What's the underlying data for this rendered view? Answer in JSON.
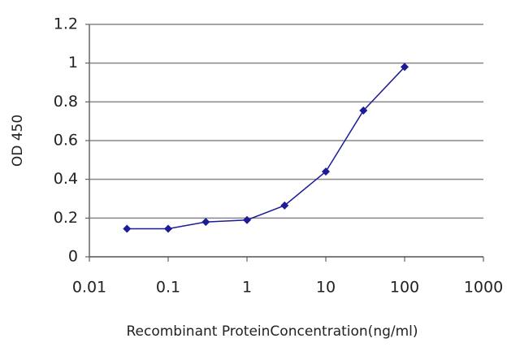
{
  "chart_data": {
    "type": "line",
    "x_label": "Recombinant ProteinConcentration(ng/ml)",
    "y_label": "OD 450",
    "x": [
      0.03,
      0.1,
      0.3,
      1,
      3,
      10,
      30,
      100
    ],
    "series": [
      {
        "color": "#1c1c96",
        "values": [
          0.145,
          0.145,
          0.18,
          0.19,
          0.265,
          0.44,
          0.755,
          0.98
        ]
      }
    ],
    "xlim": [
      0.01,
      1000
    ],
    "xticks": [
      0.01,
      0.1,
      1,
      10,
      100,
      1000
    ],
    "xscale": "log",
    "ylim": [
      0,
      1.2
    ],
    "yticks": [
      0,
      0.2,
      0.4,
      0.6,
      0.8,
      1,
      1.2
    ],
    "grid": true
  }
}
